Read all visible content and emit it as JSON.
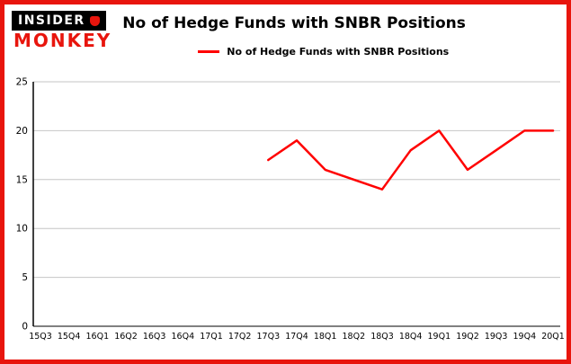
{
  "brand": {
    "line1": "INSIDER",
    "line2": "MONKEY"
  },
  "header": {
    "title": "No of Hedge Funds with SNBR Positions"
  },
  "legend": {
    "label": "No of Hedge Funds with SNBR Positions"
  },
  "chart_data": {
    "type": "line",
    "title": "No of Hedge Funds with SNBR Positions",
    "categories": [
      "15Q3",
      "15Q4",
      "16Q1",
      "16Q2",
      "16Q3",
      "16Q4",
      "17Q1",
      "17Q2",
      "17Q3",
      "17Q4",
      "18Q1",
      "18Q2",
      "18Q3",
      "18Q4",
      "19Q1",
      "19Q2",
      "19Q3",
      "19Q4",
      "20Q1"
    ],
    "series": [
      {
        "name": "No of Hedge Funds with SNBR Positions",
        "color": "#ff0000",
        "values": [
          null,
          null,
          null,
          null,
          null,
          null,
          null,
          null,
          17,
          19,
          16,
          15,
          14,
          18,
          20,
          16,
          18,
          20,
          20
        ]
      }
    ],
    "xlabel": "",
    "ylabel": "",
    "ylim": [
      0,
      25
    ],
    "yticks": [
      0,
      5,
      10,
      15,
      20,
      25
    ],
    "grid": true,
    "legend_position": "top"
  },
  "colors": {
    "border": "#e8150d",
    "brand_red": "#e8150d",
    "brand_black": "#000000",
    "line": "#ff0000",
    "grid": "#c6c6c6",
    "axis": "#000000",
    "background": "#ffffff"
  }
}
